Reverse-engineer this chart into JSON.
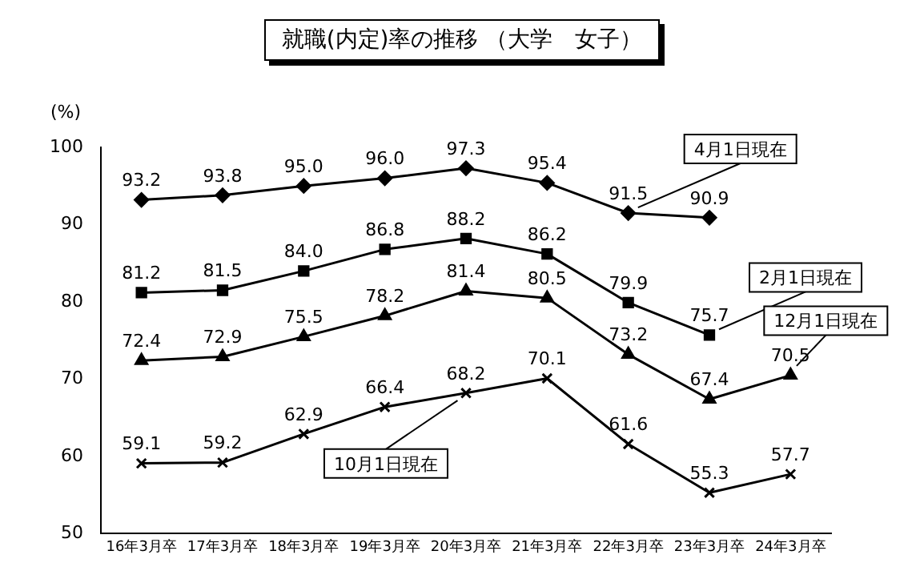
{
  "chart_data": {
    "type": "line",
    "title": "就職(内定)率の推移 （大学　女子）",
    "ylabel": "(%)",
    "categories": [
      "16年3月卒",
      "17年3月卒",
      "18年3月卒",
      "19年3月卒",
      "20年3月卒",
      "21年3月卒",
      "22年3月卒",
      "23年3月卒",
      "24年3月卒"
    ],
    "series": [
      {
        "color": "#000000",
        "marker": "diamond",
        "values": [
          93.2,
          93.8,
          95.0,
          96.0,
          97.3,
          95.4,
          91.5,
          90.9,
          null
        ],
        "value_labels": [
          "93.2",
          "93.8",
          "95.0",
          "96.0",
          "97.3",
          "95.4",
          "91.5",
          "90.9",
          null
        ]
      },
      {
        "color": "#000000",
        "marker": "square",
        "values": [
          81.2,
          81.5,
          84.0,
          86.8,
          88.2,
          86.2,
          79.9,
          75.7,
          null
        ],
        "value_labels": [
          "81.2",
          "81.5",
          "84.0",
          "86.8",
          "88.2",
          "86.2",
          "79.9",
          "75.7",
          null
        ]
      },
      {
        "color": "#000000",
        "marker": "triangle",
        "values": [
          72.4,
          72.9,
          75.5,
          78.2,
          81.4,
          80.5,
          73.2,
          67.4,
          70.5
        ]
      },
      {
        "color": "#000000",
        "marker": "cross",
        "values": [
          59.1,
          59.2,
          62.9,
          66.4,
          68.2,
          70.1,
          61.6,
          55.3,
          57.7
        ]
      }
    ],
    "ylim": [
      50,
      100
    ],
    "yticks": [
      50,
      60,
      70,
      80,
      90,
      100
    ],
    "grid": false,
    "legend": false,
    "data_labels": true,
    "line_style": "solid",
    "annotations": [
      {
        "text": "4月1日現在",
        "x": "22年3月卒",
        "y": 91.5
      },
      {
        "text": "2月1日現在",
        "x": "23年3月卒",
        "y": 75.7
      },
      {
        "text": "12月1日現在",
        "x": "24年3月卒",
        "y": 70.5
      },
      {
        "text": "10月1日現在",
        "x": "20年3月卒",
        "y": 68.2
      }
    ]
  }
}
